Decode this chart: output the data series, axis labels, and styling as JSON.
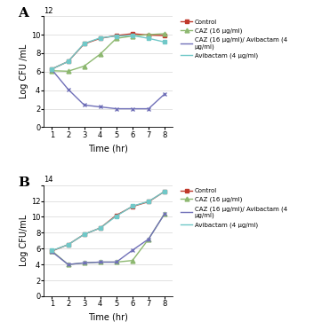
{
  "panel_A": {
    "time": [
      1,
      2,
      3,
      4,
      5,
      6,
      7,
      8
    ],
    "control": [
      6.3,
      7.1,
      9.0,
      9.6,
      9.9,
      10.1,
      9.95,
      9.9
    ],
    "caz": [
      6.1,
      6.05,
      6.6,
      7.9,
      9.6,
      9.85,
      10.0,
      10.1
    ],
    "caz_avibactam": [
      6.2,
      4.1,
      2.4,
      2.2,
      2.0,
      2.0,
      2.0,
      3.6
    ],
    "avibactam": [
      6.3,
      7.1,
      9.05,
      9.65,
      9.85,
      9.9,
      9.6,
      9.2
    ],
    "ylim": [
      0,
      12
    ],
    "yticks": [
      0,
      2,
      4,
      6,
      8,
      10,
      12
    ],
    "yticklabels": [
      "0",
      "2",
      "4",
      "6",
      "8",
      "10",
      ""
    ],
    "ymax_label": "12",
    "ylabel": "Log CFU /mL",
    "xlabel": "Time (hr)",
    "label": "A"
  },
  "panel_B": {
    "time": [
      1,
      2,
      3,
      4,
      5,
      6,
      7,
      8
    ],
    "control": [
      5.7,
      6.5,
      7.8,
      8.6,
      10.2,
      11.3,
      11.9,
      13.2
    ],
    "caz": [
      5.7,
      4.0,
      4.2,
      4.3,
      4.3,
      4.5,
      7.2,
      10.4
    ],
    "caz_avibactam": [
      5.6,
      4.0,
      4.2,
      4.3,
      4.3,
      5.8,
      7.2,
      10.4
    ],
    "avibactam": [
      5.75,
      6.5,
      7.8,
      8.6,
      10.1,
      11.35,
      11.95,
      13.2
    ],
    "ylim": [
      0,
      14
    ],
    "yticks": [
      0,
      2,
      4,
      6,
      8,
      10,
      12,
      14
    ],
    "yticklabels": [
      "0",
      "2",
      "4",
      "6",
      "8",
      "10",
      "12",
      ""
    ],
    "ymax_label": "14",
    "ylabel": "Log CFU/mL",
    "xlabel": "Time (hr)",
    "label": "B"
  },
  "colors": {
    "control": "#c0392b",
    "caz": "#8db870",
    "caz_avibactam": "#7070b8",
    "avibactam": "#70c8c8"
  },
  "legend_labels": {
    "control": "Control",
    "caz": "CAZ (16 μg/ml)",
    "caz_avibactam": "CAZ (16 μg/ml)/ Avibactam (4\nμg/ml)",
    "avibactam": "Avibactam (4 μg/ml)"
  },
  "markers": {
    "control": "s",
    "caz": "^",
    "caz_avibactam": "x",
    "avibactam": "s"
  },
  "figsize": [
    3.53,
    3.63
  ],
  "dpi": 100
}
